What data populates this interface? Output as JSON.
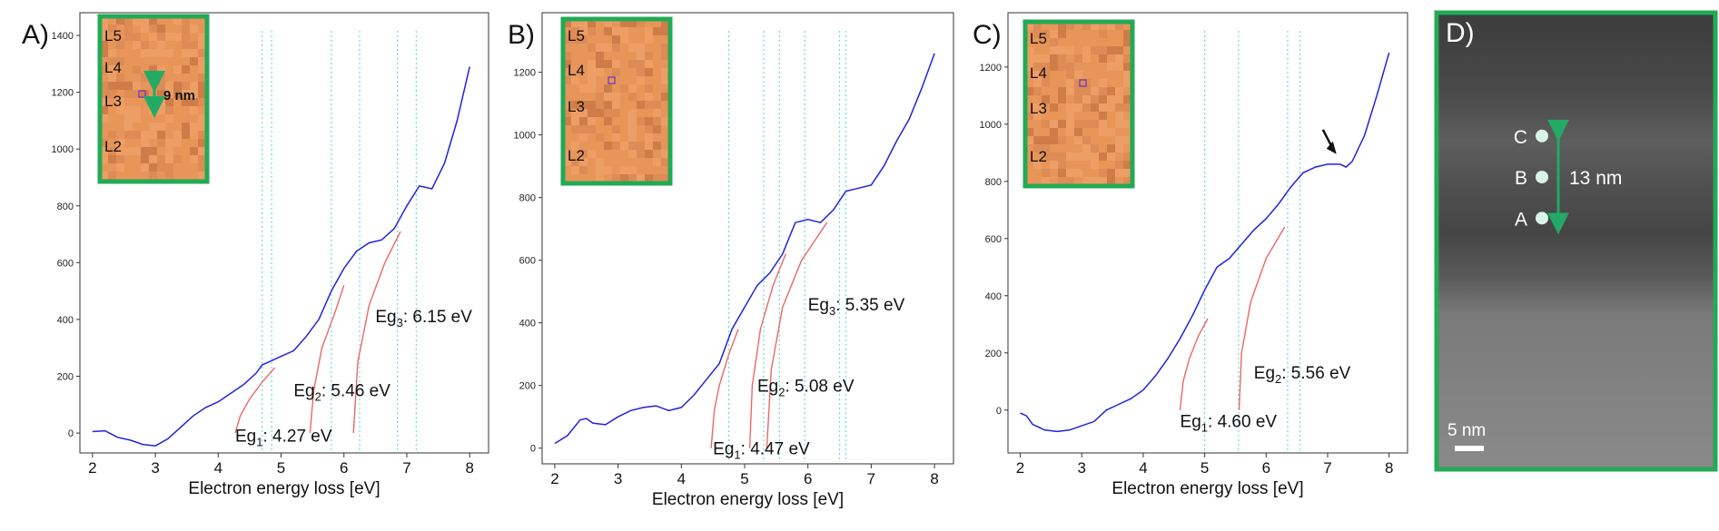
{
  "chart_data": [
    {
      "type": "line",
      "panel_label": "A)",
      "xlabel": "Electron energy loss [eV]",
      "ylabel": "",
      "xlim": [
        1.8,
        8.3
      ],
      "ylim": [
        -70,
        1480
      ],
      "x_ticks": [
        2,
        3,
        4,
        5,
        6,
        7,
        8
      ],
      "y_ticks": [
        0,
        200,
        400,
        600,
        800,
        1000,
        1200,
        1400
      ],
      "series": [
        {
          "name": "spectrum",
          "color": "#2222dd",
          "x": [
            2.0,
            2.2,
            2.4,
            2.6,
            2.8,
            3.0,
            3.2,
            3.4,
            3.6,
            3.8,
            4.0,
            4.2,
            4.4,
            4.6,
            4.7,
            4.8,
            5.0,
            5.2,
            5.4,
            5.6,
            5.8,
            6.0,
            6.2,
            6.4,
            6.6,
            6.8,
            7.0,
            7.2,
            7.4,
            7.6,
            7.8,
            8.0
          ],
          "y": [
            5,
            8,
            -15,
            -25,
            -40,
            -45,
            -20,
            20,
            60,
            90,
            110,
            140,
            170,
            210,
            240,
            250,
            270,
            290,
            340,
            400,
            500,
            580,
            640,
            670,
            680,
            720,
            800,
            870,
            860,
            950,
            1100,
            1290
          ]
        }
      ],
      "fits": [
        {
          "x": [
            4.27,
            4.35,
            4.5,
            4.7,
            4.9
          ],
          "y": [
            0,
            60,
            120,
            180,
            230
          ]
        },
        {
          "x": [
            5.46,
            5.52,
            5.65,
            5.85,
            6.0
          ],
          "y": [
            0,
            150,
            300,
            420,
            520
          ]
        },
        {
          "x": [
            6.15,
            6.22,
            6.4,
            6.65,
            6.9
          ],
          "y": [
            0,
            250,
            450,
            600,
            710
          ]
        }
      ],
      "vlines": [
        4.7,
        4.85,
        5.8,
        6.25,
        6.85,
        7.15
      ],
      "annotations": [
        {
          "text": "Eg",
          "sub": "1",
          "value": ": 4.27 eV",
          "x": 4.27,
          "y": -30
        },
        {
          "text": "Eg",
          "sub": "2",
          "value": ": 5.46 eV",
          "x": 5.2,
          "y": 130
        },
        {
          "text": "Eg",
          "sub": "3",
          "value": ": 6.15 eV",
          "x": 6.5,
          "y": 390
        }
      ],
      "inset": {
        "labels": [
          "L5",
          "L4",
          "L3",
          "L2"
        ],
        "scale_text": "9 nm"
      }
    },
    {
      "type": "line",
      "panel_label": "B)",
      "xlabel": "Electron energy loss [eV]",
      "ylabel": "",
      "xlim": [
        1.8,
        8.3
      ],
      "ylim": [
        -50,
        1390
      ],
      "x_ticks": [
        2,
        3,
        4,
        5,
        6,
        7,
        8
      ],
      "y_ticks": [
        0,
        200,
        400,
        600,
        800,
        1000,
        1200
      ],
      "series": [
        {
          "name": "spectrum",
          "color": "#2222dd",
          "x": [
            2.0,
            2.2,
            2.4,
            2.5,
            2.6,
            2.8,
            3.0,
            3.2,
            3.4,
            3.6,
            3.8,
            4.0,
            4.2,
            4.4,
            4.6,
            4.8,
            5.0,
            5.2,
            5.4,
            5.6,
            5.8,
            6.0,
            6.2,
            6.4,
            6.6,
            6.8,
            7.0,
            7.2,
            7.4,
            7.6,
            7.8,
            8.0
          ],
          "y": [
            15,
            40,
            90,
            95,
            80,
            75,
            100,
            120,
            130,
            135,
            120,
            130,
            170,
            220,
            270,
            380,
            450,
            520,
            560,
            620,
            720,
            730,
            720,
            760,
            820,
            830,
            840,
            900,
            980,
            1050,
            1150,
            1260
          ]
        }
      ],
      "fits": [
        {
          "x": [
            4.47,
            4.52,
            4.6,
            4.75,
            4.9
          ],
          "y": [
            0,
            120,
            200,
            300,
            380
          ]
        },
        {
          "x": [
            5.08,
            5.12,
            5.25,
            5.45,
            5.65
          ],
          "y": [
            0,
            200,
            380,
            520,
            620
          ]
        },
        {
          "x": [
            5.35,
            5.42,
            5.6,
            5.9,
            6.3
          ],
          "y": [
            0,
            250,
            450,
            600,
            720
          ]
        }
      ],
      "vlines": [
        4.75,
        5.3,
        5.55,
        5.95,
        6.5,
        6.6
      ],
      "annotations": [
        {
          "text": "Eg",
          "sub": "1",
          "value": ": 4.47 eV",
          "x": 4.5,
          "y": -20
        },
        {
          "text": "Eg",
          "sub": "2",
          "value": ": 5.08 eV",
          "x": 5.2,
          "y": 180
        },
        {
          "text": "Eg",
          "sub": "3",
          "value": ": 5.35 eV",
          "x": 6.0,
          "y": 440
        }
      ],
      "inset": {
        "labels": [
          "L5",
          "L4",
          "L3",
          "L2"
        ],
        "scale_text": ""
      }
    },
    {
      "type": "line",
      "panel_label": "C)",
      "xlabel": "Electron energy loss [eV]",
      "ylabel": "",
      "xlim": [
        1.8,
        8.3
      ],
      "ylim": [
        -150,
        1390
      ],
      "x_ticks": [
        2,
        3,
        4,
        5,
        6,
        7,
        8
      ],
      "y_ticks": [
        0,
        200,
        400,
        600,
        800,
        1000,
        1200
      ],
      "series": [
        {
          "name": "spectrum",
          "color": "#2222dd",
          "x": [
            2.0,
            2.1,
            2.2,
            2.4,
            2.6,
            2.8,
            3.0,
            3.2,
            3.4,
            3.6,
            3.8,
            4.0,
            4.2,
            4.4,
            4.6,
            4.8,
            5.0,
            5.2,
            5.4,
            5.6,
            5.8,
            6.0,
            6.2,
            6.4,
            6.6,
            6.8,
            7.0,
            7.2,
            7.3,
            7.4,
            7.6,
            7.8,
            8.0
          ],
          "y": [
            -10,
            -20,
            -50,
            -70,
            -75,
            -70,
            -55,
            -40,
            0,
            20,
            40,
            70,
            120,
            180,
            250,
            330,
            420,
            500,
            530,
            580,
            630,
            670,
            720,
            780,
            830,
            850,
            860,
            860,
            850,
            870,
            960,
            1100,
            1250
          ]
        }
      ],
      "fits": [
        {
          "x": [
            4.6,
            4.65,
            4.75,
            4.9,
            5.05
          ],
          "y": [
            0,
            100,
            180,
            260,
            320
          ]
        },
        {
          "x": [
            5.56,
            5.6,
            5.75,
            6.0,
            6.3
          ],
          "y": [
            0,
            200,
            380,
            530,
            640
          ]
        }
      ],
      "vlines": [
        5.0,
        5.55,
        6.35,
        6.55
      ],
      "annotations": [
        {
          "text": "Eg",
          "sub": "1",
          "value": ": 4.60 eV",
          "x": 4.6,
          "y": -60
        },
        {
          "text": "Eg",
          "sub": "2",
          "value": ": 5.56 eV",
          "x": 5.8,
          "y": 110
        }
      ],
      "arrow": {
        "x": 7.1,
        "y": 870
      },
      "inset": {
        "labels": [
          "L5",
          "L4",
          "L3",
          "L2"
        ],
        "scale_text": ""
      }
    }
  ],
  "image_panel": {
    "panel_label": "D)",
    "points": [
      {
        "label": "C",
        "level": 0.27
      },
      {
        "label": "B",
        "level": 0.36
      },
      {
        "label": "A",
        "level": 0.45
      }
    ],
    "distance_text": "13 nm",
    "scalebar_text": "5 nm"
  },
  "colors": {
    "spectrum": "#2222dd",
    "fit": "#ee6666",
    "vline": "#66dddd",
    "frame": "#22aa55",
    "inset_bg": "#e8955a"
  }
}
